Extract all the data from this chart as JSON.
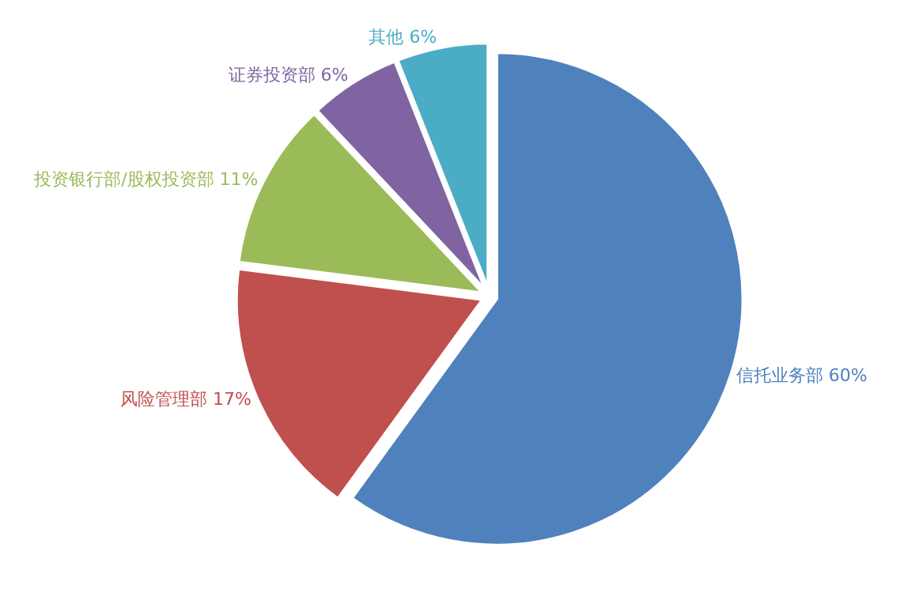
{
  "chart_data": {
    "type": "pie",
    "categories": [
      "信托业务部",
      "风险管理部",
      "投资银行部/股权投资部",
      "证券投资部",
      "其他"
    ],
    "values": [
      60,
      17,
      11,
      6,
      6
    ],
    "value_labels": [
      "60%",
      "17%",
      "11%",
      "6%",
      "6%"
    ],
    "colors": [
      "#4f81bd",
      "#c0504d",
      "#9bbb59",
      "#8064a2",
      "#4bacc6"
    ],
    "legend": false
  }
}
